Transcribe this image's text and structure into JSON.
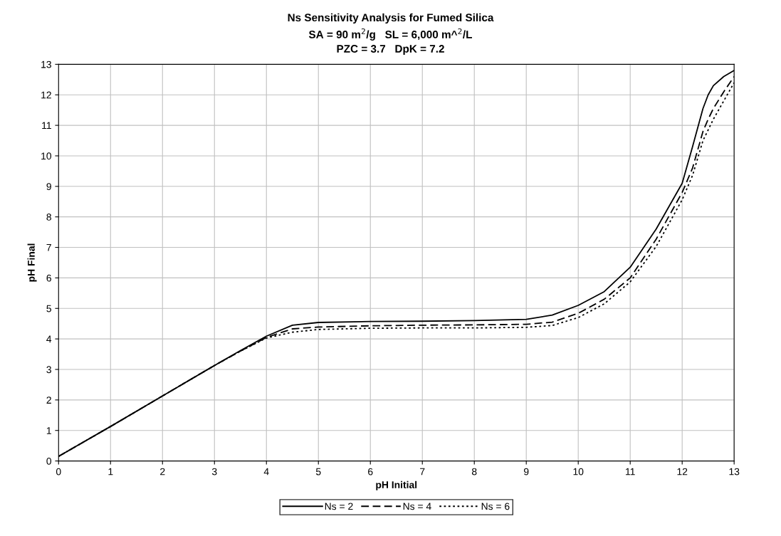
{
  "chart_data": {
    "type": "line",
    "title": "Ns Sensitivity Analysis for Fumed Silica",
    "subtitle": "SA = 90 m$^{2}$/g   SL = 6,000 m^$^{2}$/L\nPZC = 3.7   DpK = 7.2",
    "xlabel": "pH Initial",
    "ylabel": "pH Final",
    "x": [
      0,
      1,
      2,
      3,
      3.5,
      4,
      4.5,
      5,
      6,
      7,
      8,
      9,
      9.5,
      10,
      10.5,
      11,
      11.5,
      12,
      12.2,
      12.4,
      12.5,
      12.6,
      12.8,
      13
    ],
    "series": [
      {
        "name": "Ns = 2",
        "color": "#000000",
        "line_style": "solid",
        "values": [
          0.15,
          1.13,
          2.13,
          3.13,
          3.62,
          4.09,
          4.45,
          4.54,
          4.57,
          4.58,
          4.6,
          4.64,
          4.78,
          5.1,
          5.55,
          6.35,
          7.6,
          9.1,
          10.3,
          11.55,
          12.0,
          12.3,
          12.6,
          12.8
        ]
      },
      {
        "name": "Ns = 4",
        "color": "#000000",
        "line_style": "dashed",
        "values": [
          0.15,
          1.13,
          2.13,
          3.13,
          3.6,
          4.05,
          4.33,
          4.39,
          4.43,
          4.45,
          4.46,
          4.48,
          4.55,
          4.84,
          5.3,
          6.0,
          7.27,
          8.8,
          9.6,
          10.8,
          11.2,
          11.55,
          12.1,
          12.6
        ]
      },
      {
        "name": "Ns = 6",
        "color": "#000000",
        "line_style": "dotted",
        "values": [
          0.15,
          1.13,
          2.13,
          3.13,
          3.6,
          4.03,
          4.22,
          4.31,
          4.35,
          4.36,
          4.36,
          4.38,
          4.44,
          4.7,
          5.15,
          5.87,
          7.03,
          8.56,
          9.36,
          10.5,
          10.85,
          11.2,
          11.8,
          12.4
        ]
      }
    ],
    "xlim": [
      0,
      13
    ],
    "ylim": [
      0,
      13
    ],
    "xticks": [
      0,
      1,
      2,
      3,
      4,
      5,
      6,
      7,
      8,
      9,
      10,
      11,
      12,
      13
    ],
    "yticks": [
      0,
      1,
      2,
      3,
      4,
      5,
      6,
      7,
      8,
      9,
      10,
      11,
      12,
      13
    ],
    "grid": true,
    "legend": "bottom",
    "marker": "none"
  }
}
